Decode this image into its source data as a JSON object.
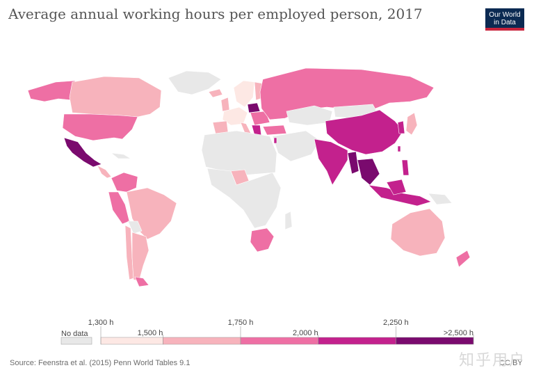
{
  "title": "Average annual working hours per employed person, 2017",
  "logo": {
    "line1": "Our World",
    "line2": "in Data"
  },
  "legend": {
    "no_data_label": "No data",
    "no_data_color": "#e8e8e8",
    "bins": [
      {
        "from": 1300,
        "to": 1500,
        "color": "#fde8e4"
      },
      {
        "from": 1500,
        "to": 1750,
        "color": "#f7b3bc"
      },
      {
        "from": 1750,
        "to": 2000,
        "color": "#ee6fa4"
      },
      {
        "from": 2000,
        "to": 2250,
        "color": "#c3218d"
      },
      {
        "from": 2250,
        "to": 2500,
        "color": "#7a0a6e"
      }
    ],
    "ticks": [
      {
        "label": "1,300 h",
        "value": 1300,
        "row": "upper"
      },
      {
        "label": "1,500 h",
        "value": 1500,
        "row": "lower"
      },
      {
        "label": "1,750 h",
        "value": 1750,
        "row": "upper"
      },
      {
        "label": "2,000 h",
        "value": 2000,
        "row": "lower"
      },
      {
        "label": "2,250 h",
        "value": 2250,
        "row": "upper"
      },
      {
        "label": ">2,500 h",
        "value": 2500,
        "row": "lower"
      }
    ]
  },
  "source": "Source: Feenstra et al. (2015) Penn World Tables 9.1",
  "license": "CC BY",
  "watermark": "知乎用户",
  "colors": {
    "no_data": "#e8e8e8",
    "h1300_1500": "#fde8e4",
    "h1500_1750": "#f7b3bc",
    "h1750_2000": "#ee6fa4",
    "h2000_2250": "#c3218d",
    "h2250_2500": "#7a0a6e"
  }
}
